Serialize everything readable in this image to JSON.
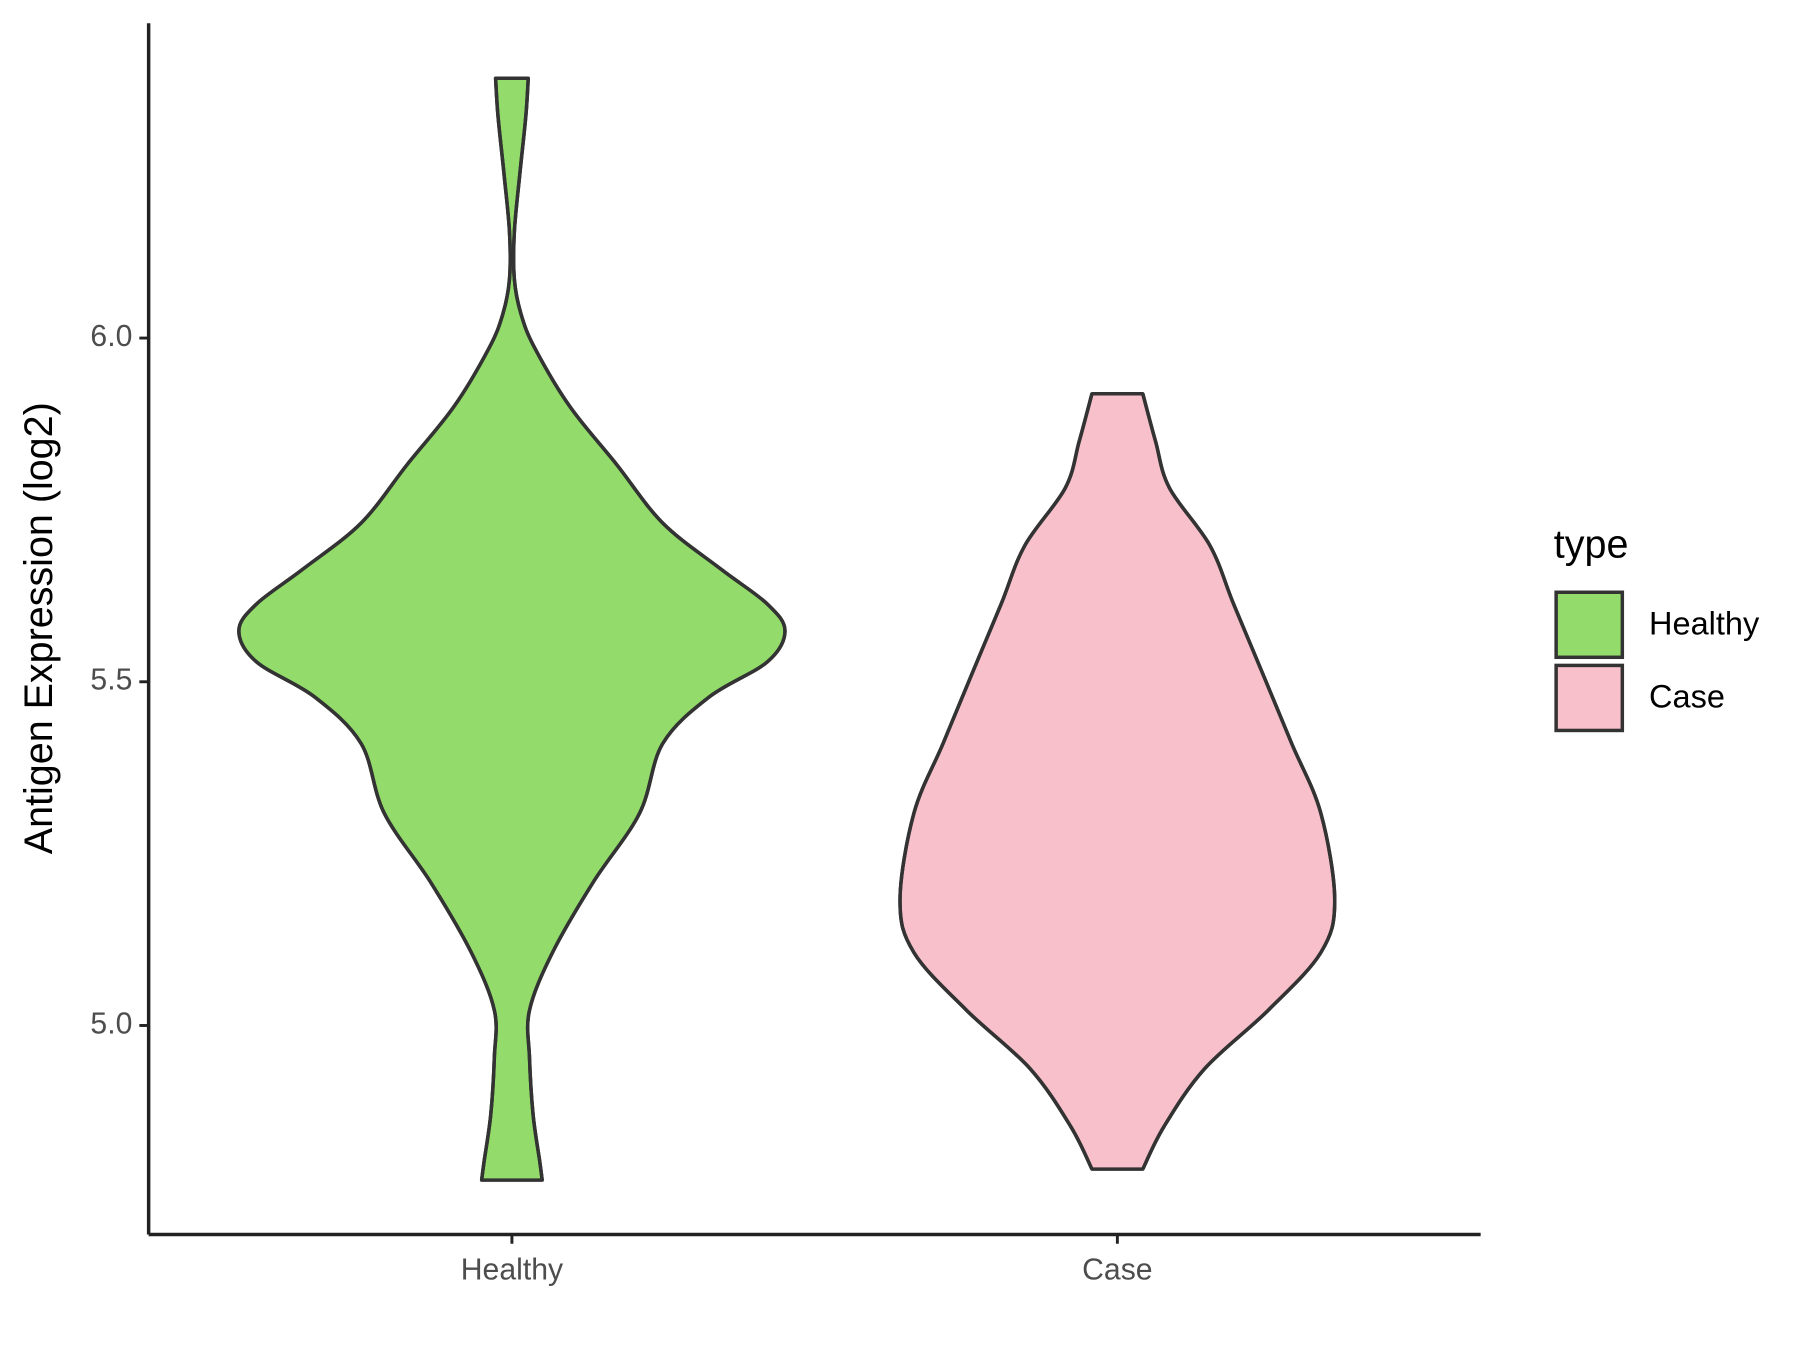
{
  "chart_data": {
    "type": "violin",
    "y_label": "Antigen Expression (log2)",
    "legend_title": "type",
    "categories": [
      "Healthy",
      "Case"
    ],
    "series": [
      {
        "name": "Healthy",
        "color": "#93dc6b",
        "y": [
          6.378,
          6.323,
          6.238,
          6.154,
          6.086,
          6.035,
          5.985,
          5.9,
          5.816,
          5.731,
          5.664,
          5.613,
          5.574,
          5.529,
          5.478,
          5.41,
          5.309,
          5.208,
          5.106,
          5.022,
          4.954,
          4.87,
          4.802,
          4.775
        ],
        "half_width": [
          0.027,
          0.023,
          0.013,
          0.004,
          0.004,
          0.015,
          0.038,
          0.096,
          0.173,
          0.249,
          0.345,
          0.422,
          0.451,
          0.422,
          0.326,
          0.249,
          0.211,
          0.134,
          0.067,
          0.029,
          0.029,
          0.035,
          0.046,
          0.05
        ]
      },
      {
        "name": "Case",
        "color": "#f7c0cb",
        "y": [
          5.919,
          5.85,
          5.782,
          5.698,
          5.613,
          5.512,
          5.41,
          5.309,
          5.182,
          5.106,
          5.022,
          4.937,
          4.853,
          4.791
        ],
        "half_width": [
          0.042,
          0.063,
          0.086,
          0.153,
          0.192,
          0.24,
          0.288,
          0.336,
          0.359,
          0.336,
          0.249,
          0.144,
          0.077,
          0.042
        ]
      }
    ],
    "ylim": [
      4.696,
      6.458
    ],
    "yticks": [
      {
        "value": 5,
        "label": "5.0"
      },
      5.5,
      {
        "value": 6,
        "label": "6.0"
      }
    ]
  }
}
